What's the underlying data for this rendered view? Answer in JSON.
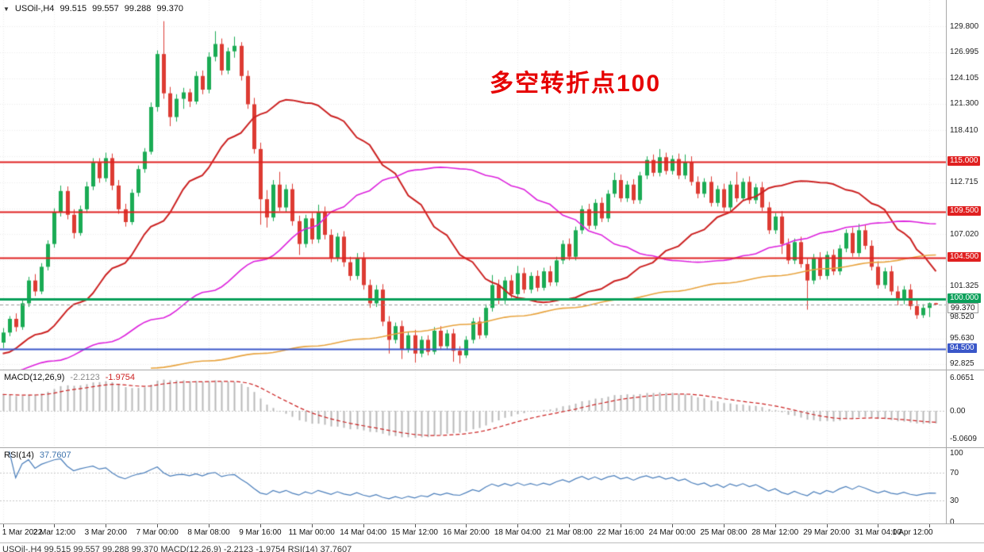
{
  "header": {
    "collapse_icon": "▼",
    "symbol": "USOil-,H4",
    "open": "99.515",
    "high": "99.557",
    "low": "99.288",
    "close": "99.370"
  },
  "annotation": {
    "text": "多空转折点100",
    "color": "#e60000"
  },
  "footer": {
    "clipped_text": "USOil-,H4  99.515 99.557 99.288 99.370    MACD(12,26,9) -2.2123 -1.9754    RSI(14) 37.7607"
  },
  "chart_data": {
    "type": "candlestick",
    "title": "USOil-,H4",
    "timeframe": "H4",
    "bars_per_label": 8,
    "x_labels": [
      "1 Mar 2022",
      "2 Mar 12:00",
      "3 Mar 20:00",
      "7 Mar 00:00",
      "8 Mar 08:00",
      "9 Mar 16:00",
      "11 Mar 00:00",
      "14 Mar 04:00",
      "15 Mar 12:00",
      "16 Mar 20:00",
      "18 Mar 04:00",
      "21 Mar 08:00",
      "22 Mar 16:00",
      "24 Mar 00:00",
      "25 Mar 08:00",
      "28 Mar 12:00",
      "29 Mar 20:00",
      "31 Mar 04:00",
      "1 Apr 12:00"
    ],
    "price_axis_ticks": [
      "129.800",
      "126.995",
      "124.105",
      "121.300",
      "118.410",
      "112.715",
      "107.020",
      "101.325",
      "98.520",
      "95.630",
      "92.825"
    ],
    "current_price": 99.37,
    "current_price_label": "99.370",
    "hlines": [
      {
        "price": 115.0,
        "label": "115.000",
        "color": "#e02020",
        "width": 2
      },
      {
        "price": 109.5,
        "label": "109.500",
        "color": "#e02020",
        "width": 2
      },
      {
        "price": 104.5,
        "label": "104.500",
        "color": "#e02020",
        "width": 2
      },
      {
        "price": 100.0,
        "label": "100.000",
        "color": "#0aa05a",
        "width": 3
      },
      {
        "price": 94.5,
        "label": "94.500",
        "color": "#3a57c9",
        "width": 2
      }
    ],
    "colors": {
      "up": "#1aab54",
      "down": "#dd3b33",
      "grid": "#ececec",
      "macd_hist": "#b8b8b8",
      "macd_signal": "#cc2222"
    },
    "ohlc": [
      [
        95.2,
        96.8,
        94.6,
        96.3
      ],
      [
        96.3,
        98.1,
        95.9,
        97.8
      ],
      [
        97.8,
        98.4,
        96.4,
        96.9
      ],
      [
        96.9,
        99.9,
        96.6,
        99.5
      ],
      [
        99.5,
        102.4,
        99.1,
        102.0
      ],
      [
        102.0,
        102.7,
        100.3,
        100.8
      ],
      [
        100.8,
        103.9,
        100.5,
        103.5
      ],
      [
        103.5,
        106.4,
        103.1,
        106.0
      ],
      [
        106.0,
        109.9,
        105.6,
        109.5
      ],
      [
        109.5,
        112.4,
        109.0,
        111.8
      ],
      [
        111.8,
        112.3,
        108.7,
        109.2
      ],
      [
        109.2,
        109.8,
        106.6,
        107.2
      ],
      [
        107.2,
        110.2,
        106.9,
        109.8
      ],
      [
        109.8,
        112.8,
        109.4,
        112.3
      ],
      [
        112.3,
        115.4,
        111.9,
        114.9
      ],
      [
        114.9,
        115.4,
        112.7,
        113.2
      ],
      [
        113.2,
        116.0,
        112.8,
        115.4
      ],
      [
        115.4,
        115.9,
        111.9,
        112.4
      ],
      [
        112.4,
        113.0,
        109.3,
        109.8
      ],
      [
        109.8,
        110.4,
        107.9,
        108.4
      ],
      [
        108.4,
        112.0,
        108.1,
        111.6
      ],
      [
        111.6,
        114.6,
        111.2,
        114.2
      ],
      [
        114.2,
        116.5,
        113.8,
        116.1
      ],
      [
        116.1,
        121.5,
        115.8,
        121.0
      ],
      [
        121.0,
        127.2,
        120.5,
        126.8
      ],
      [
        126.8,
        130.4,
        121.9,
        122.5
      ],
      [
        122.5,
        123.2,
        118.9,
        119.9
      ],
      [
        119.9,
        122.4,
        119.4,
        121.9
      ],
      [
        121.9,
        123.1,
        120.8,
        122.6
      ],
      [
        122.6,
        123.0,
        121.0,
        121.6
      ],
      [
        121.6,
        124.9,
        121.3,
        124.4
      ],
      [
        124.4,
        125.0,
        122.4,
        122.9
      ],
      [
        122.9,
        127.0,
        122.5,
        126.5
      ],
      [
        126.5,
        129.3,
        126.0,
        127.9
      ],
      [
        127.9,
        128.5,
        124.5,
        125.0
      ],
      [
        125.0,
        127.5,
        124.6,
        127.1
      ],
      [
        127.1,
        128.7,
        126.4,
        127.7
      ],
      [
        127.7,
        128.1,
        123.9,
        124.4
      ],
      [
        124.4,
        125.0,
        120.8,
        121.3
      ],
      [
        121.3,
        122.0,
        115.9,
        116.4
      ],
      [
        116.4,
        117.1,
        108.1,
        110.9
      ],
      [
        110.9,
        111.9,
        107.8,
        108.9
      ],
      [
        108.9,
        113.0,
        108.5,
        112.5
      ],
      [
        112.5,
        113.9,
        109.6,
        110.0
      ],
      [
        110.0,
        112.5,
        109.5,
        112.0
      ],
      [
        112.0,
        112.6,
        108.0,
        108.5
      ],
      [
        108.5,
        109.1,
        104.8,
        106.0
      ],
      [
        106.0,
        109.2,
        105.6,
        108.8
      ],
      [
        108.8,
        109.4,
        106.0,
        106.5
      ],
      [
        106.5,
        110.3,
        106.1,
        109.5
      ],
      [
        109.5,
        110.1,
        106.5,
        107.0
      ],
      [
        107.0,
        107.6,
        104.0,
        104.5
      ],
      [
        104.5,
        107.2,
        104.1,
        106.8
      ],
      [
        106.8,
        107.4,
        103.5,
        104.0
      ],
      [
        104.0,
        104.6,
        102.0,
        102.5
      ],
      [
        102.5,
        105.0,
        102.1,
        104.5
      ],
      [
        104.5,
        105.1,
        101.0,
        101.5
      ],
      [
        101.5,
        102.1,
        99.0,
        99.5
      ],
      [
        99.5,
        101.5,
        99.1,
        101.0
      ],
      [
        101.0,
        101.6,
        97.0,
        97.5
      ],
      [
        97.5,
        98.1,
        94.0,
        95.5
      ],
      [
        95.5,
        97.4,
        95.1,
        97.0
      ],
      [
        97.0,
        97.6,
        93.4,
        94.5
      ],
      [
        94.5,
        96.4,
        94.1,
        96.0
      ],
      [
        96.0,
        96.6,
        93.0,
        94.0
      ],
      [
        94.0,
        95.9,
        93.6,
        95.5
      ],
      [
        95.5,
        96.0,
        93.8,
        94.2
      ],
      [
        94.2,
        96.9,
        93.9,
        96.5
      ],
      [
        96.5,
        97.0,
        94.4,
        94.8
      ],
      [
        94.8,
        96.6,
        94.4,
        96.2
      ],
      [
        96.2,
        96.7,
        93.1,
        94.3
      ],
      [
        94.3,
        94.8,
        92.9,
        93.8
      ],
      [
        93.8,
        95.9,
        93.5,
        95.5
      ],
      [
        95.5,
        97.9,
        95.1,
        97.5
      ],
      [
        97.5,
        98.0,
        95.6,
        96.0
      ],
      [
        96.0,
        99.4,
        95.7,
        99.0
      ],
      [
        99.0,
        102.6,
        98.6,
        101.5
      ],
      [
        101.5,
        102.1,
        99.4,
        99.8
      ],
      [
        99.8,
        102.4,
        99.4,
        102.0
      ],
      [
        102.0,
        102.6,
        100.1,
        100.5
      ],
      [
        100.5,
        103.6,
        100.1,
        102.8
      ],
      [
        102.8,
        103.4,
        100.6,
        101.0
      ],
      [
        101.0,
        102.9,
        100.6,
        102.5
      ],
      [
        102.5,
        103.1,
        100.8,
        101.2
      ],
      [
        101.2,
        103.4,
        100.9,
        103.0
      ],
      [
        103.0,
        103.6,
        101.4,
        101.8
      ],
      [
        101.8,
        104.6,
        101.4,
        104.2
      ],
      [
        104.2,
        106.4,
        103.8,
        106.0
      ],
      [
        106.0,
        106.6,
        104.2,
        104.6
      ],
      [
        104.6,
        107.9,
        104.2,
        107.5
      ],
      [
        107.5,
        110.2,
        107.1,
        109.8
      ],
      [
        109.8,
        110.4,
        107.6,
        108.0
      ],
      [
        108.0,
        110.9,
        107.6,
        110.5
      ],
      [
        110.5,
        111.1,
        108.4,
        108.8
      ],
      [
        108.8,
        111.9,
        108.4,
        111.5
      ],
      [
        111.5,
        113.8,
        111.1,
        113.0
      ],
      [
        113.0,
        113.6,
        110.6,
        111.0
      ],
      [
        111.0,
        112.9,
        110.6,
        112.5
      ],
      [
        112.5,
        113.1,
        110.4,
        110.8
      ],
      [
        110.8,
        113.9,
        110.4,
        113.5
      ],
      [
        113.5,
        115.6,
        113.1,
        115.2
      ],
      [
        115.2,
        115.8,
        113.4,
        113.8
      ],
      [
        113.8,
        116.4,
        113.4,
        115.5
      ],
      [
        115.5,
        116.0,
        113.6,
        114.0
      ],
      [
        114.0,
        115.7,
        113.6,
        115.3
      ],
      [
        115.3,
        115.9,
        113.1,
        113.5
      ],
      [
        113.5,
        115.8,
        113.1,
        115.0
      ],
      [
        115.0,
        115.6,
        112.4,
        112.8
      ],
      [
        112.8,
        113.4,
        111.0,
        111.5
      ],
      [
        111.5,
        113.2,
        111.1,
        112.8
      ],
      [
        112.8,
        113.4,
        110.1,
        110.5
      ],
      [
        110.5,
        112.4,
        110.1,
        112.0
      ],
      [
        112.0,
        112.6,
        109.6,
        110.0
      ],
      [
        110.0,
        112.9,
        109.6,
        112.5
      ],
      [
        112.5,
        113.9,
        110.6,
        111.0
      ],
      [
        111.0,
        113.2,
        110.7,
        112.8
      ],
      [
        112.8,
        113.4,
        110.4,
        110.8
      ],
      [
        110.8,
        112.6,
        110.4,
        112.2
      ],
      [
        112.2,
        112.8,
        109.6,
        110.0
      ],
      [
        110.0,
        110.6,
        107.1,
        107.5
      ],
      [
        107.5,
        109.4,
        107.1,
        109.0
      ],
      [
        109.0,
        109.6,
        104.9,
        106.0
      ],
      [
        106.0,
        106.6,
        103.8,
        104.2
      ],
      [
        104.2,
        106.6,
        103.8,
        106.2
      ],
      [
        106.2,
        106.8,
        103.4,
        103.8
      ],
      [
        103.8,
        104.4,
        98.8,
        102.0
      ],
      [
        102.0,
        104.9,
        101.6,
        104.5
      ],
      [
        104.5,
        105.1,
        102.1,
        102.5
      ],
      [
        102.5,
        105.2,
        102.1,
        104.8
      ],
      [
        104.8,
        105.4,
        102.6,
        103.0
      ],
      [
        103.0,
        105.9,
        102.6,
        105.5
      ],
      [
        105.5,
        107.6,
        105.1,
        107.2
      ],
      [
        107.2,
        107.8,
        104.6,
        105.0
      ],
      [
        105.0,
        108.2,
        104.6,
        107.5
      ],
      [
        107.5,
        108.1,
        105.4,
        105.8
      ],
      [
        105.8,
        106.4,
        103.1,
        103.5
      ],
      [
        103.5,
        104.1,
        101.1,
        101.5
      ],
      [
        101.5,
        103.4,
        101.1,
        103.0
      ],
      [
        103.0,
        103.6,
        100.4,
        100.8
      ],
      [
        100.8,
        101.4,
        99.3,
        99.8
      ],
      [
        99.8,
        101.4,
        99.4,
        101.0
      ],
      [
        101.0,
        101.6,
        98.8,
        99.2
      ],
      [
        99.2,
        99.8,
        97.8,
        98.2
      ],
      [
        98.2,
        99.4,
        97.9,
        99.0
      ],
      [
        99.0,
        99.6,
        98.0,
        99.5
      ],
      [
        99.515,
        99.557,
        99.288,
        99.37
      ]
    ],
    "moving_averages": [
      {
        "name": "ma-slow-red",
        "color": "#cc2222",
        "width": 2,
        "anchors": [
          [
            0,
            94.0
          ],
          [
            6,
            96.2
          ],
          [
            12,
            99.6
          ],
          [
            18,
            103.6
          ],
          [
            24,
            108.2
          ],
          [
            30,
            113.2
          ],
          [
            36,
            117.8
          ],
          [
            40,
            120.2
          ],
          [
            44,
            121.8
          ],
          [
            48,
            121.4
          ],
          [
            52,
            119.8
          ],
          [
            56,
            117.3
          ],
          [
            60,
            114.2
          ],
          [
            64,
            110.8
          ],
          [
            68,
            107.4
          ],
          [
            72,
            104.4
          ],
          [
            76,
            101.8
          ],
          [
            80,
            100.1
          ],
          [
            84,
            99.6
          ],
          [
            88,
            100.0
          ],
          [
            92,
            100.9
          ],
          [
            96,
            102.1
          ],
          [
            100,
            103.7
          ],
          [
            104,
            105.5
          ],
          [
            108,
            107.3
          ],
          [
            112,
            109.2
          ],
          [
            116,
            111.0
          ],
          [
            120,
            112.3
          ],
          [
            124,
            112.9
          ],
          [
            128,
            112.7
          ],
          [
            132,
            111.8
          ],
          [
            136,
            110.2
          ],
          [
            140,
            107.2
          ],
          [
            143,
            104.8
          ],
          [
            145,
            103.0
          ]
        ]
      },
      {
        "name": "ma-medium-magenta",
        "color": "#dd22dd",
        "width": 1.6,
        "anchors": [
          [
            0,
            91.8
          ],
          [
            8,
            93.2
          ],
          [
            16,
            95.2
          ],
          [
            24,
            97.8
          ],
          [
            32,
            100.8
          ],
          [
            40,
            104.2
          ],
          [
            48,
            107.8
          ],
          [
            52,
            109.8
          ],
          [
            56,
            111.6
          ],
          [
            60,
            113.2
          ],
          [
            64,
            114.1
          ],
          [
            68,
            114.4
          ],
          [
            72,
            114.2
          ],
          [
            76,
            113.4
          ],
          [
            80,
            112.2
          ],
          [
            84,
            110.6
          ],
          [
            88,
            108.9
          ],
          [
            92,
            107.2
          ],
          [
            96,
            105.8
          ],
          [
            100,
            104.8
          ],
          [
            104,
            104.2
          ],
          [
            108,
            104.0
          ],
          [
            112,
            104.2
          ],
          [
            116,
            104.8
          ],
          [
            120,
            105.7
          ],
          [
            124,
            106.5
          ],
          [
            128,
            107.3
          ],
          [
            132,
            107.9
          ],
          [
            136,
            108.3
          ],
          [
            140,
            108.5
          ],
          [
            145,
            108.2
          ]
        ]
      },
      {
        "name": "ma-long-orange",
        "color": "#e8a33d",
        "width": 1.6,
        "anchors": [
          [
            23,
            92.4
          ],
          [
            32,
            93.2
          ],
          [
            40,
            94.0
          ],
          [
            48,
            94.8
          ],
          [
            56,
            95.6
          ],
          [
            64,
            96.4
          ],
          [
            72,
            97.2
          ],
          [
            80,
            98.1
          ],
          [
            88,
            99.0
          ],
          [
            96,
            99.9
          ],
          [
            104,
            100.8
          ],
          [
            112,
            101.7
          ],
          [
            120,
            102.5
          ],
          [
            128,
            103.3
          ],
          [
            136,
            104.0
          ],
          [
            145,
            104.8
          ]
        ]
      }
    ],
    "indicators": [
      {
        "type": "MACD",
        "label": "MACD(12,26,9)",
        "params": [
          12,
          26,
          9
        ],
        "value1": "-2.2123",
        "value2": "-1.9754",
        "axis_labels": [
          "6.0651",
          "0.00",
          "-5.0609"
        ],
        "range": [
          -6.0,
          6.6
        ]
      },
      {
        "type": "RSI",
        "label": "RSI(14)",
        "params": [
          14
        ],
        "value": "37.7607",
        "axis_labels": [
          "100",
          "70",
          "30",
          "0"
        ],
        "levels": [
          70,
          30
        ],
        "range": [
          0,
          100
        ],
        "color": "#4a7ebb"
      }
    ]
  }
}
